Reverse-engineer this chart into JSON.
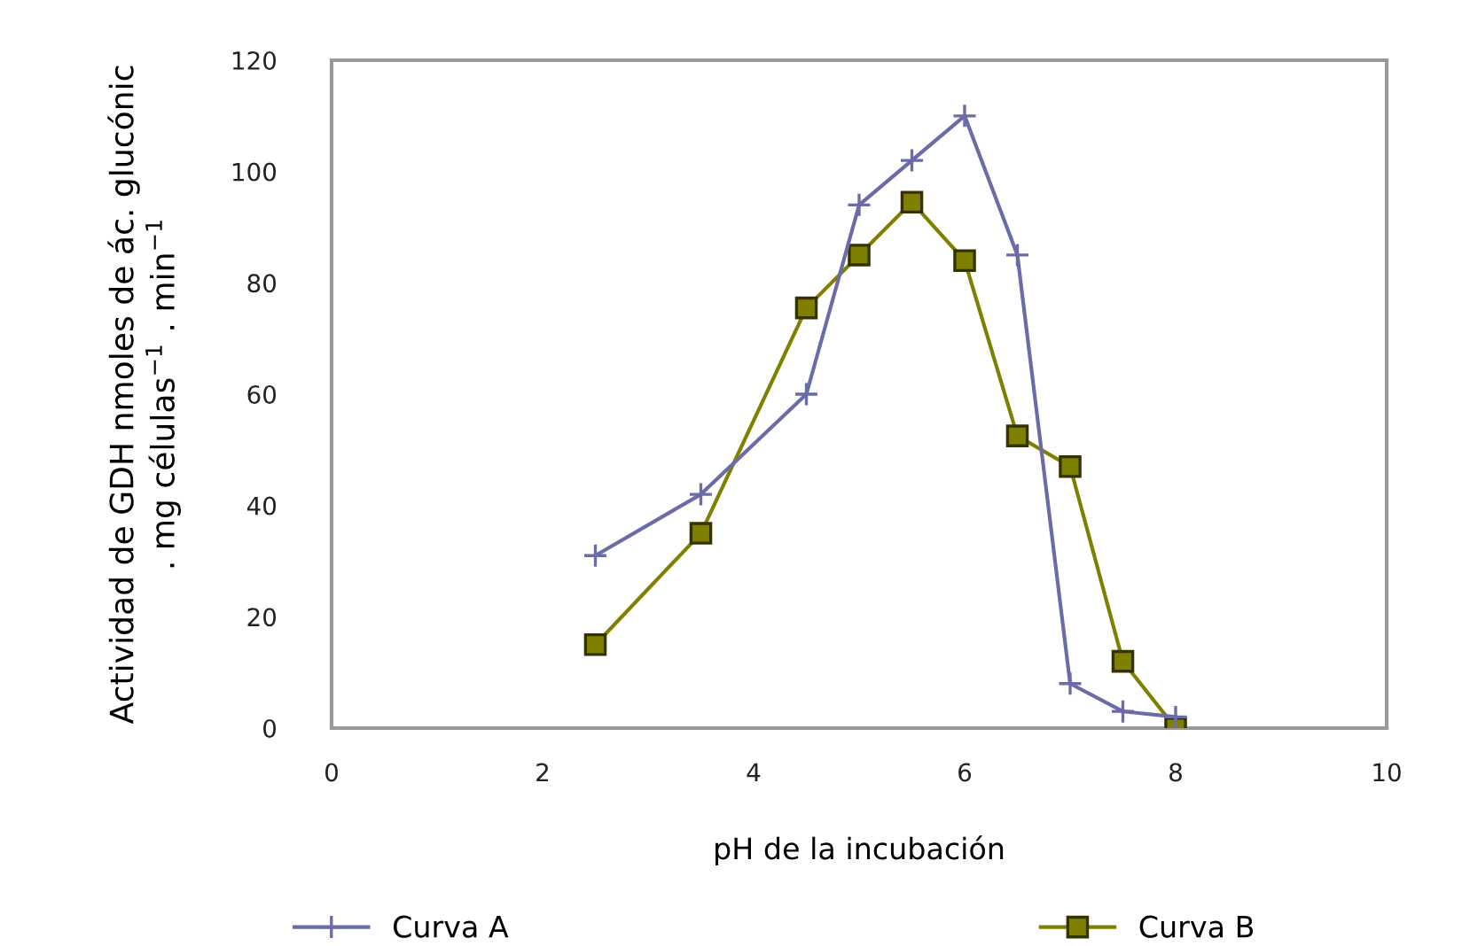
{
  "chart_data": {
    "type": "line",
    "xlabel": "pH de la incubación",
    "ylabel": "Actividad de GDH nmoles de ác. glucónic\n. mg células$^{−1}$ . min$^{−1}$",
    "x": [
      2.5,
      3.5,
      4.5,
      5,
      5.5,
      6,
      6.5,
      7,
      7.5,
      8
    ],
    "series": [
      {
        "name": "Curva A",
        "color": "#6b6ba8",
        "marker": "cross",
        "values": [
          31,
          42,
          60,
          94,
          102,
          110,
          85,
          8,
          3,
          2
        ]
      },
      {
        "name": "Curva B",
        "color": "#808000",
        "marker": "square",
        "values": [
          15,
          35,
          75.5,
          85,
          94.5,
          84,
          52.5,
          47,
          12,
          0
        ]
      }
    ],
    "xlim": [
      0,
      10
    ],
    "xticks": [
      0,
      2,
      4,
      6,
      8,
      10
    ],
    "ylim": [
      0,
      120
    ],
    "yticks": [
      0,
      20,
      40,
      60,
      80,
      100,
      120
    ],
    "grid": false,
    "legend": "bottom"
  }
}
